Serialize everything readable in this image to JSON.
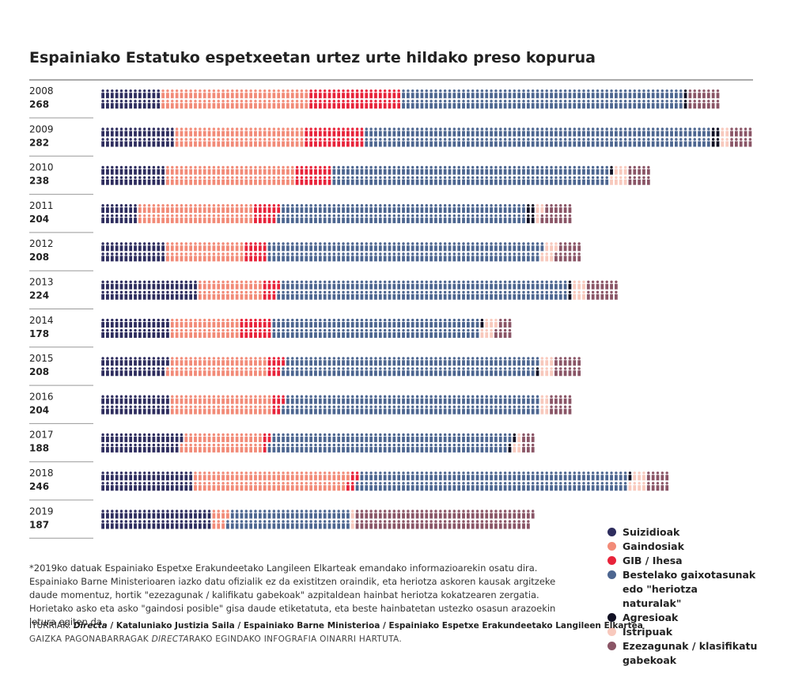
{
  "chart_data": {
    "type": "pictogram",
    "title": "Espainiako Estatuko espetxeetan urtez urte hildako preso kopurua",
    "categories": [
      "2008",
      "2009",
      "2010",
      "2011",
      "2012",
      "2013",
      "2014",
      "2015",
      "2016",
      "2017",
      "2018",
      "2019"
    ],
    "totals": [
      268,
      282,
      238,
      204,
      208,
      224,
      178,
      208,
      204,
      188,
      246,
      187
    ],
    "series": [
      {
        "name": "Suizidioak",
        "color": "#2e2d5e",
        "values": [
          26,
          32,
          28,
          16,
          28,
          42,
          30,
          29,
          30,
          35,
          40,
          48
        ]
      },
      {
        "name": "Gaindosiak",
        "color": "#f28b78",
        "values": [
          64,
          56,
          56,
          50,
          34,
          28,
          30,
          43,
          44,
          35,
          67,
          7
        ]
      },
      {
        "name": "GIB / Ihesa",
        "color": "#e8233a",
        "values": [
          40,
          26,
          16,
          11,
          10,
          7,
          14,
          7,
          5,
          3,
          4,
          0
        ]
      },
      {
        "name": "Bestelako gaixotasunak edo \"heriotza naturalak\"",
        "color": "#4d6690",
        "values": [
          122,
          150,
          120,
          107,
          119,
          125,
          90,
          110,
          111,
          104,
          117,
          53
        ]
      },
      {
        "name": "Agresioak",
        "color": "#111024",
        "values": [
          2,
          4,
          1,
          4,
          0,
          2,
          1,
          1,
          0,
          2,
          1,
          0
        ]
      },
      {
        "name": "Istripuak",
        "color": "#f8c9bd",
        "values": [
          0,
          4,
          7,
          3,
          6,
          6,
          6,
          6,
          4,
          3,
          7,
          2
        ]
      },
      {
        "name": "Ezezagunak / klasifikatu gabekoak",
        "color": "#8a5566",
        "values": [
          14,
          10,
          10,
          13,
          11,
          14,
          7,
          12,
          10,
          6,
          10,
          77
        ]
      }
    ],
    "footnote": "*2019ko datuak Espainiako Espetxe Erakundeetako Langileen Elkarteak emandako informazioarekin osatu dira. Espainiako Barne Ministerioaren iazko datu ofizialik ez da existitzen oraindik, eta heriotza askoren kausak argitzeke daude momentuz, hortik \"ezezagunak / kalifikatu gabekoak\" azpitaldean hainbat heriotza kokatzearen zergatia. Horietako asko eta asko \"gaindosi posible\" gisa daude etiketatuta, eta beste hainbatetan ustezko osasun arazoekin lotura egiten da.",
    "sources": [
      "ITURRIAK: ",
      "Directa",
      " / Kataluniako Justizia Saila / Espainiako Barne Ministerioa / Espainiako Espetxe Erakundeetako Langileen Elkartea"
    ],
    "credit": [
      "GAIZKA PAGONABARRAGAK ",
      "DIRECTA",
      "RAKO EGINDAKO INFOGRAFIA OINARRI HARTUTA."
    ]
  }
}
